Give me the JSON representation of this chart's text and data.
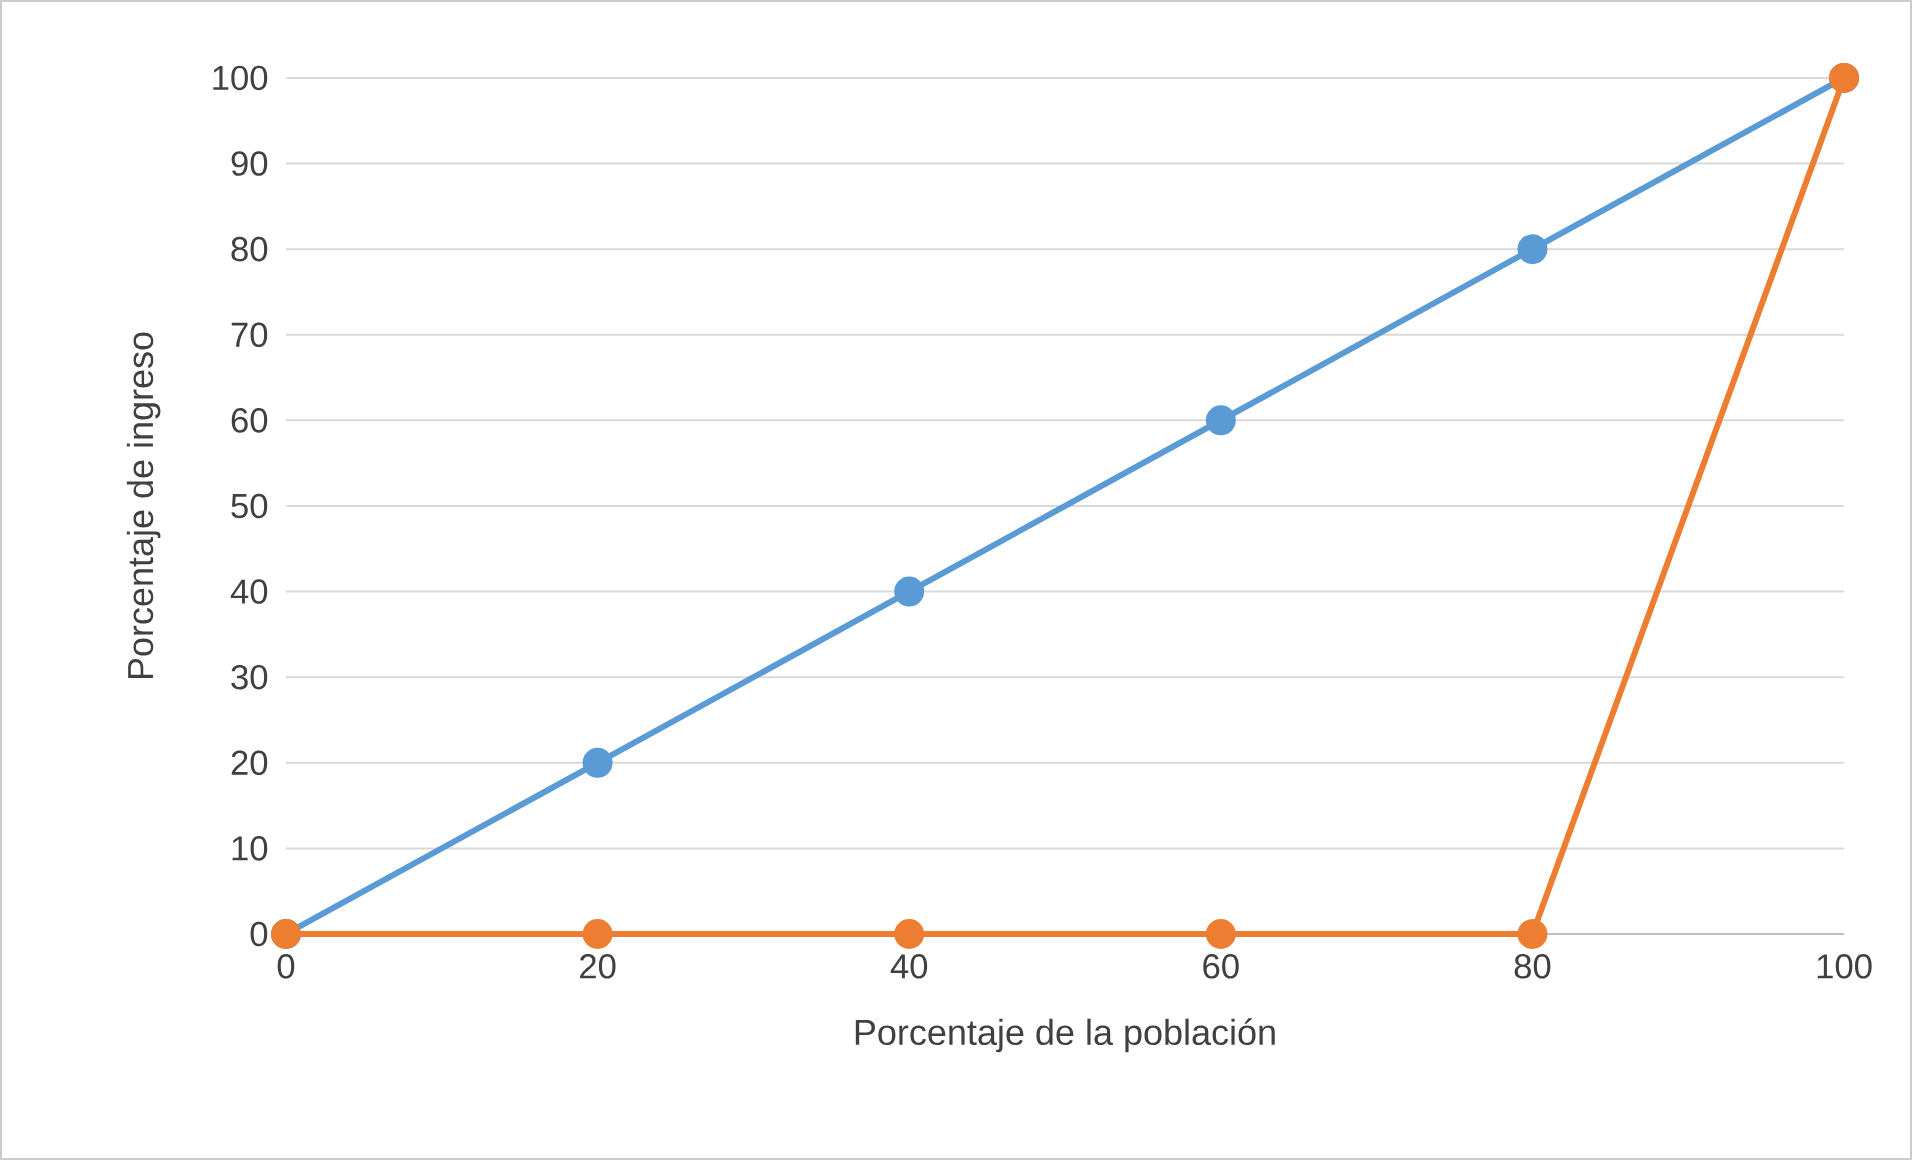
{
  "chart_data": {
    "type": "line",
    "xlabel": "Porcentaje de la población",
    "ylabel": "Porcentaje de ingreso",
    "x": [
      0,
      20,
      40,
      60,
      80,
      100
    ],
    "series": [
      {
        "color": "#5b9bd5",
        "values": [
          0,
          20,
          40,
          60,
          80,
          100
        ]
      },
      {
        "color": "#ed7d31",
        "values": [
          0,
          0,
          0,
          0,
          0,
          100
        ]
      }
    ],
    "xlim": [
      0,
      100
    ],
    "ylim": [
      0,
      100
    ],
    "xticks": [
      0,
      20,
      40,
      60,
      80,
      100
    ],
    "yticks": [
      0,
      10,
      20,
      30,
      40,
      50,
      60,
      70,
      80,
      90,
      100
    ],
    "grid": "y",
    "marker": "circle",
    "line_style": "solid"
  }
}
